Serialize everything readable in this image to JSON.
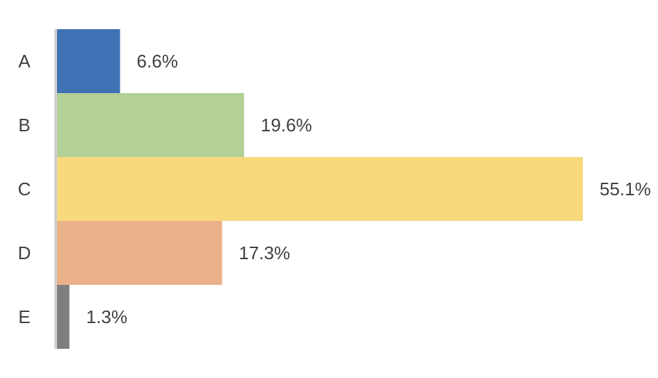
{
  "chart_data": {
    "type": "bar",
    "orientation": "horizontal",
    "categories": [
      "A",
      "B",
      "C",
      "D",
      "E"
    ],
    "values": [
      6.6,
      19.6,
      55.1,
      17.3,
      1.3
    ],
    "value_labels": [
      "6.6%",
      "19.6%",
      "55.1%",
      "17.3%",
      "1.3%"
    ],
    "colors": [
      "#3f72b5",
      "#b3d096",
      "#f8d97c",
      "#ebb189",
      "#7f7f7f"
    ]
  }
}
